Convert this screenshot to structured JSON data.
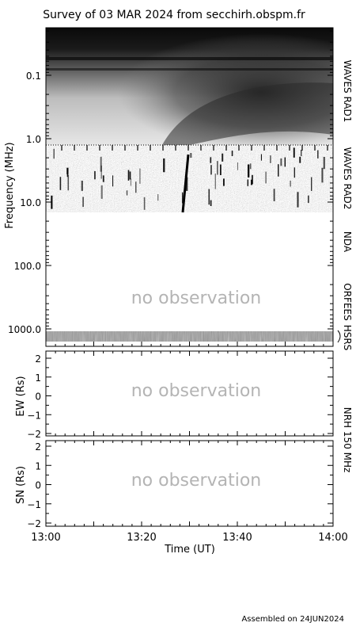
{
  "title": "Survey of 03 MAR 2024 from secchirh.obspm.fr",
  "footer": "Assembled on 24JUN2024",
  "colors": {
    "frame": "#000000",
    "no_observation_text": "#b4b4b4",
    "background": "#ffffff"
  },
  "chart_data": [
    {
      "type": "heatmap",
      "panel": "dynamic-spectrum",
      "ylabel": "Frequency (MHz)",
      "yscale": "log",
      "ylim": [
        1200,
        0.02
      ],
      "yticks": [
        0.1,
        1.0,
        10.0,
        100.0,
        1000.0
      ],
      "ytick_labels": [
        "0.1",
        "1.0",
        "10.0",
        "100.0",
        "1000.0"
      ],
      "xlim": [
        "13:00",
        "14:00"
      ],
      "instruments": [
        {
          "name": "WAVES RAD1",
          "freq_range_mhz": [
            0.02,
            1.08
          ],
          "observed": true
        },
        {
          "name": "WAVES RAD2",
          "freq_range_mhz": [
            1.08,
            14.0
          ],
          "observed": true
        },
        {
          "name": "NDA",
          "freq_range_mhz": [
            14.0,
            80.0
          ],
          "observed": false
        },
        {
          "name": "ORFEES",
          "freq_range_mhz": [
            80.0,
            1000.0
          ],
          "observed": false
        },
        {
          "name": "HSRS",
          "freq_range_mhz": [
            1000.0,
            1200.0
          ],
          "observed": true
        }
      ],
      "no_observation_label": "no observation"
    },
    {
      "type": "line",
      "panel": "ew",
      "ylabel": "EW (Rs)",
      "ylim": [
        -2,
        2
      ],
      "yticks": [
        -2,
        -1,
        0,
        1,
        2
      ],
      "ytick_labels": [
        "−2",
        "−1",
        "0",
        "1",
        "2"
      ],
      "xlim": [
        "13:00",
        "14:00"
      ],
      "series": [],
      "no_observation_label": "no observation"
    },
    {
      "type": "line",
      "panel": "sn",
      "ylabel": "SN (Rs)",
      "ylim": [
        -2,
        2
      ],
      "yticks": [
        -2,
        -1,
        0,
        1,
        2
      ],
      "ytick_labels": [
        "−2",
        "−1",
        "0",
        "1",
        "2"
      ],
      "xlabel": "Time (UT)",
      "xlim": [
        "13:00",
        "14:00"
      ],
      "xticks": [
        "13:00",
        "13:20",
        "13:40",
        "14:00"
      ],
      "series": [],
      "no_observation_label": "no observation",
      "right_label": "NRH 150 MHz"
    }
  ]
}
